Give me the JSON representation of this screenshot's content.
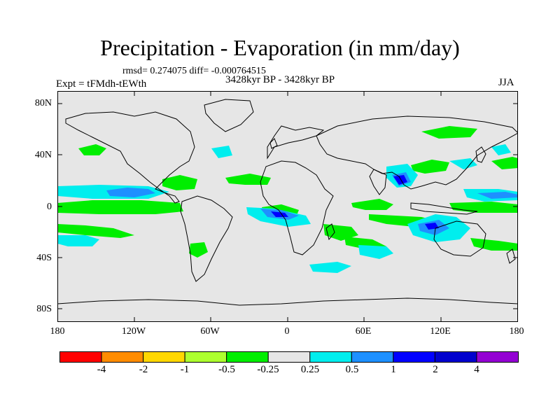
{
  "title": "Precipitation - Evaporation (in mm/day)",
  "stats_text": "rmsd= 0.274075 diff= -0.000764515",
  "experiment_label": "Expt = tFMdh-tEWth",
  "period_label": "3428kyr BP - 3428kyr BP",
  "season_label": "JJA",
  "map": {
    "background_color": "#e6e6e6",
    "coastline_color": "#000000",
    "projection": "cylindrical-equidistant",
    "lon_range": [
      -180,
      180
    ],
    "lat_range": [
      -90,
      90
    ],
    "y_ticks": [
      "80N",
      "40N",
      "0",
      "40S",
      "80S"
    ],
    "x_ticks": [
      "180",
      "120W",
      "60W",
      "0",
      "60E",
      "120E",
      "180"
    ]
  },
  "colorbar": {
    "labels": [
      "-4",
      "-2",
      "-1",
      "-0.5",
      "-0.25",
      "0.25",
      "0.5",
      "1",
      "2",
      "4"
    ],
    "colors": [
      "#ff0000",
      "#ff8c00",
      "#ffd700",
      "#adff2f",
      "#00ee00",
      "#e6e6e6",
      "#00eeee",
      "#1e90ff",
      "#0000ff",
      "#0000cd",
      "#9400d3"
    ]
  }
}
